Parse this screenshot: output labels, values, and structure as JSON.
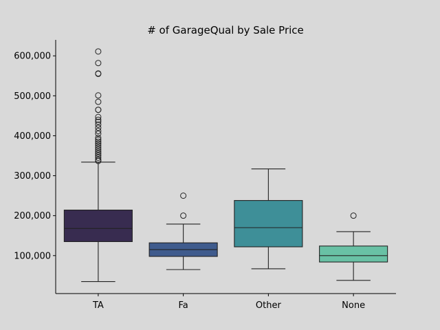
{
  "chart_data": {
    "type": "boxplot",
    "title": "# of GarageQual by Sale Price",
    "xlabel": "",
    "ylabel": "",
    "categories": [
      "TA",
      "Fa",
      "Other",
      "None"
    ],
    "ylim": [
      5000,
      640000
    ],
    "yticks": [
      100000,
      200000,
      300000,
      400000,
      500000,
      600000
    ],
    "ytick_labels": [
      "100,000",
      "200,000",
      "300,000",
      "400,000",
      "500,000",
      "600,000"
    ],
    "grid": false,
    "boxes": [
      {
        "category": "TA",
        "color": "#382c50",
        "whisker_low": 35000,
        "q1": 135000,
        "median": 168000,
        "q3": 214000,
        "whisker_high": 334000,
        "outliers": [
          337000,
          340000,
          345000,
          350000,
          355000,
          360000,
          365000,
          370000,
          375000,
          380000,
          385000,
          390000,
          395000,
          405000,
          412000,
          420000,
          428000,
          435000,
          440000,
          447000,
          465000,
          465000,
          485000,
          501000,
          555000,
          556000,
          582000,
          611000
        ]
      },
      {
        "category": "Fa",
        "color": "#3f5b8d",
        "whisker_low": 65000,
        "q1": 98000,
        "median": 115000,
        "q3": 132000,
        "whisker_high": 179000,
        "outliers": [
          200000,
          250000
        ]
      },
      {
        "category": "Other",
        "color": "#3e8f98",
        "whisker_low": 67000,
        "q1": 122000,
        "median": 170000,
        "q3": 238000,
        "whisker_high": 317000,
        "outliers": []
      },
      {
        "category": "None",
        "color": "#69c1a5",
        "whisker_low": 38000,
        "q1": 84000,
        "median": 100000,
        "q3": 124000,
        "whisker_high": 160000,
        "outliers": [
          200000
        ]
      }
    ]
  }
}
